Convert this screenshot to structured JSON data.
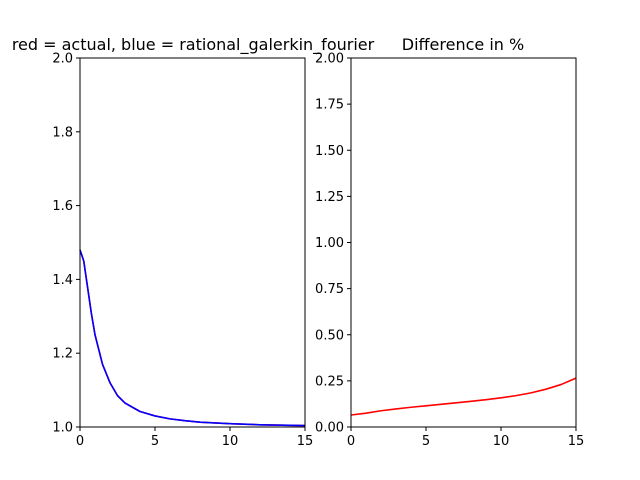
{
  "chart_data": [
    {
      "type": "line",
      "title": "red = actual, blue = rational_galerkin_fourier",
      "xlim": [
        0,
        15
      ],
      "ylim": [
        1.0,
        2.0
      ],
      "xticks": [
        "0",
        "5",
        "10",
        "15"
      ],
      "yticks": [
        "1.0",
        "1.2",
        "1.4",
        "1.6",
        "1.8",
        "2.0"
      ],
      "xtick_values": [
        0,
        5,
        10,
        15
      ],
      "ytick_values": [
        1.0,
        1.2,
        1.4,
        1.6,
        1.8,
        2.0
      ],
      "grid": false,
      "series": [
        {
          "color": "#ff0000",
          "x": [
            0,
            0.25,
            0.5,
            0.75,
            1,
            1.5,
            2,
            2.5,
            3,
            4,
            5,
            6,
            7,
            8,
            10,
            12,
            15
          ],
          "y": [
            1.48,
            1.45,
            1.38,
            1.31,
            1.25,
            1.17,
            1.12,
            1.085,
            1.065,
            1.042,
            1.03,
            1.022,
            1.017,
            1.013,
            1.009,
            1.006,
            1.004
          ]
        },
        {
          "color": "#0000ff",
          "x": [
            0,
            0.25,
            0.5,
            0.75,
            1,
            1.5,
            2,
            2.5,
            3,
            4,
            5,
            6,
            7,
            8,
            10,
            12,
            15
          ],
          "y": [
            1.48,
            1.45,
            1.38,
            1.31,
            1.25,
            1.17,
            1.12,
            1.085,
            1.065,
            1.042,
            1.03,
            1.022,
            1.017,
            1.013,
            1.009,
            1.006,
            1.004
          ]
        }
      ]
    },
    {
      "type": "line",
      "title": "Difference in %",
      "xlim": [
        0,
        15
      ],
      "ylim": [
        0.0,
        2.0
      ],
      "xticks": [
        "0",
        "5",
        "10",
        "15"
      ],
      "yticks": [
        "0.00",
        "0.25",
        "0.50",
        "0.75",
        "1.00",
        "1.25",
        "1.50",
        "1.75",
        "2.00"
      ],
      "xtick_values": [
        0,
        5,
        10,
        15
      ],
      "ytick_values": [
        0,
        0.25,
        0.5,
        0.75,
        1.0,
        1.25,
        1.5,
        1.75,
        2.0
      ],
      "grid": false,
      "series": [
        {
          "color": "#ff0000",
          "x": [
            0,
            1,
            2,
            3,
            4,
            5,
            6,
            7,
            8,
            9,
            10,
            11,
            12,
            13,
            14,
            15
          ],
          "y": [
            0.065,
            0.075,
            0.088,
            0.098,
            0.107,
            0.115,
            0.123,
            0.131,
            0.139,
            0.148,
            0.158,
            0.17,
            0.185,
            0.205,
            0.23,
            0.265
          ]
        }
      ]
    }
  ]
}
